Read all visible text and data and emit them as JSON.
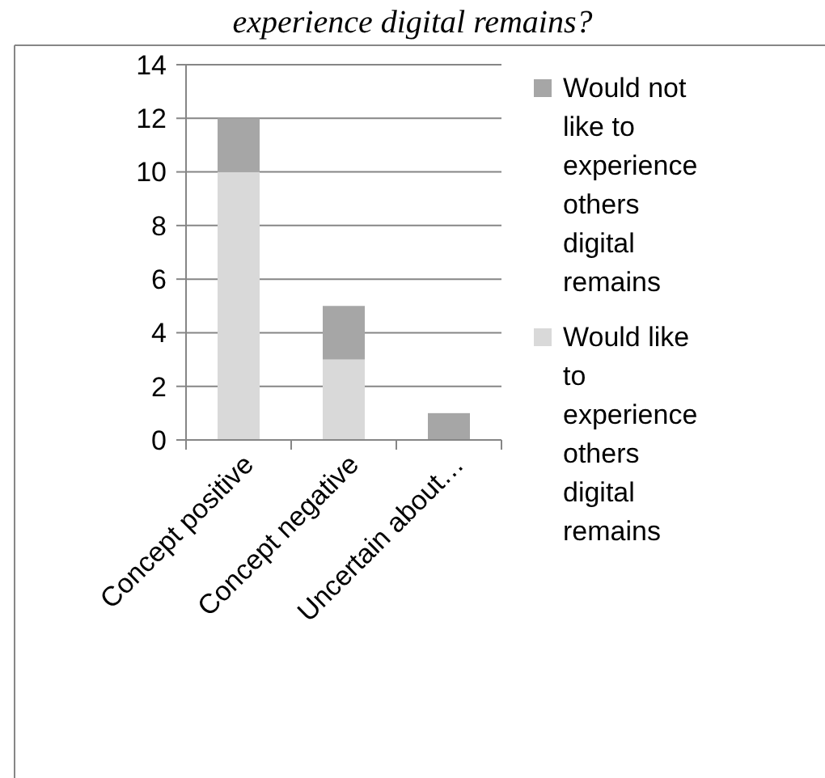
{
  "chart_data": {
    "type": "bar",
    "title": "experience digital remains?",
    "categories": [
      "Concept positive",
      "Concept negative",
      "Uncertain about…"
    ],
    "stacked": true,
    "series": [
      {
        "name": "Would like to experience others digital remains",
        "color": "#d9d9d9",
        "values": [
          10,
          3,
          0
        ]
      },
      {
        "name": "Would not like to experience others digital remains",
        "color": "#a6a6a6",
        "values": [
          2,
          2,
          1
        ]
      }
    ],
    "ylim": [
      0,
      14
    ],
    "yticks": [
      0,
      2,
      4,
      6,
      8,
      10,
      12,
      14
    ],
    "grid": "y",
    "legend": "right"
  }
}
